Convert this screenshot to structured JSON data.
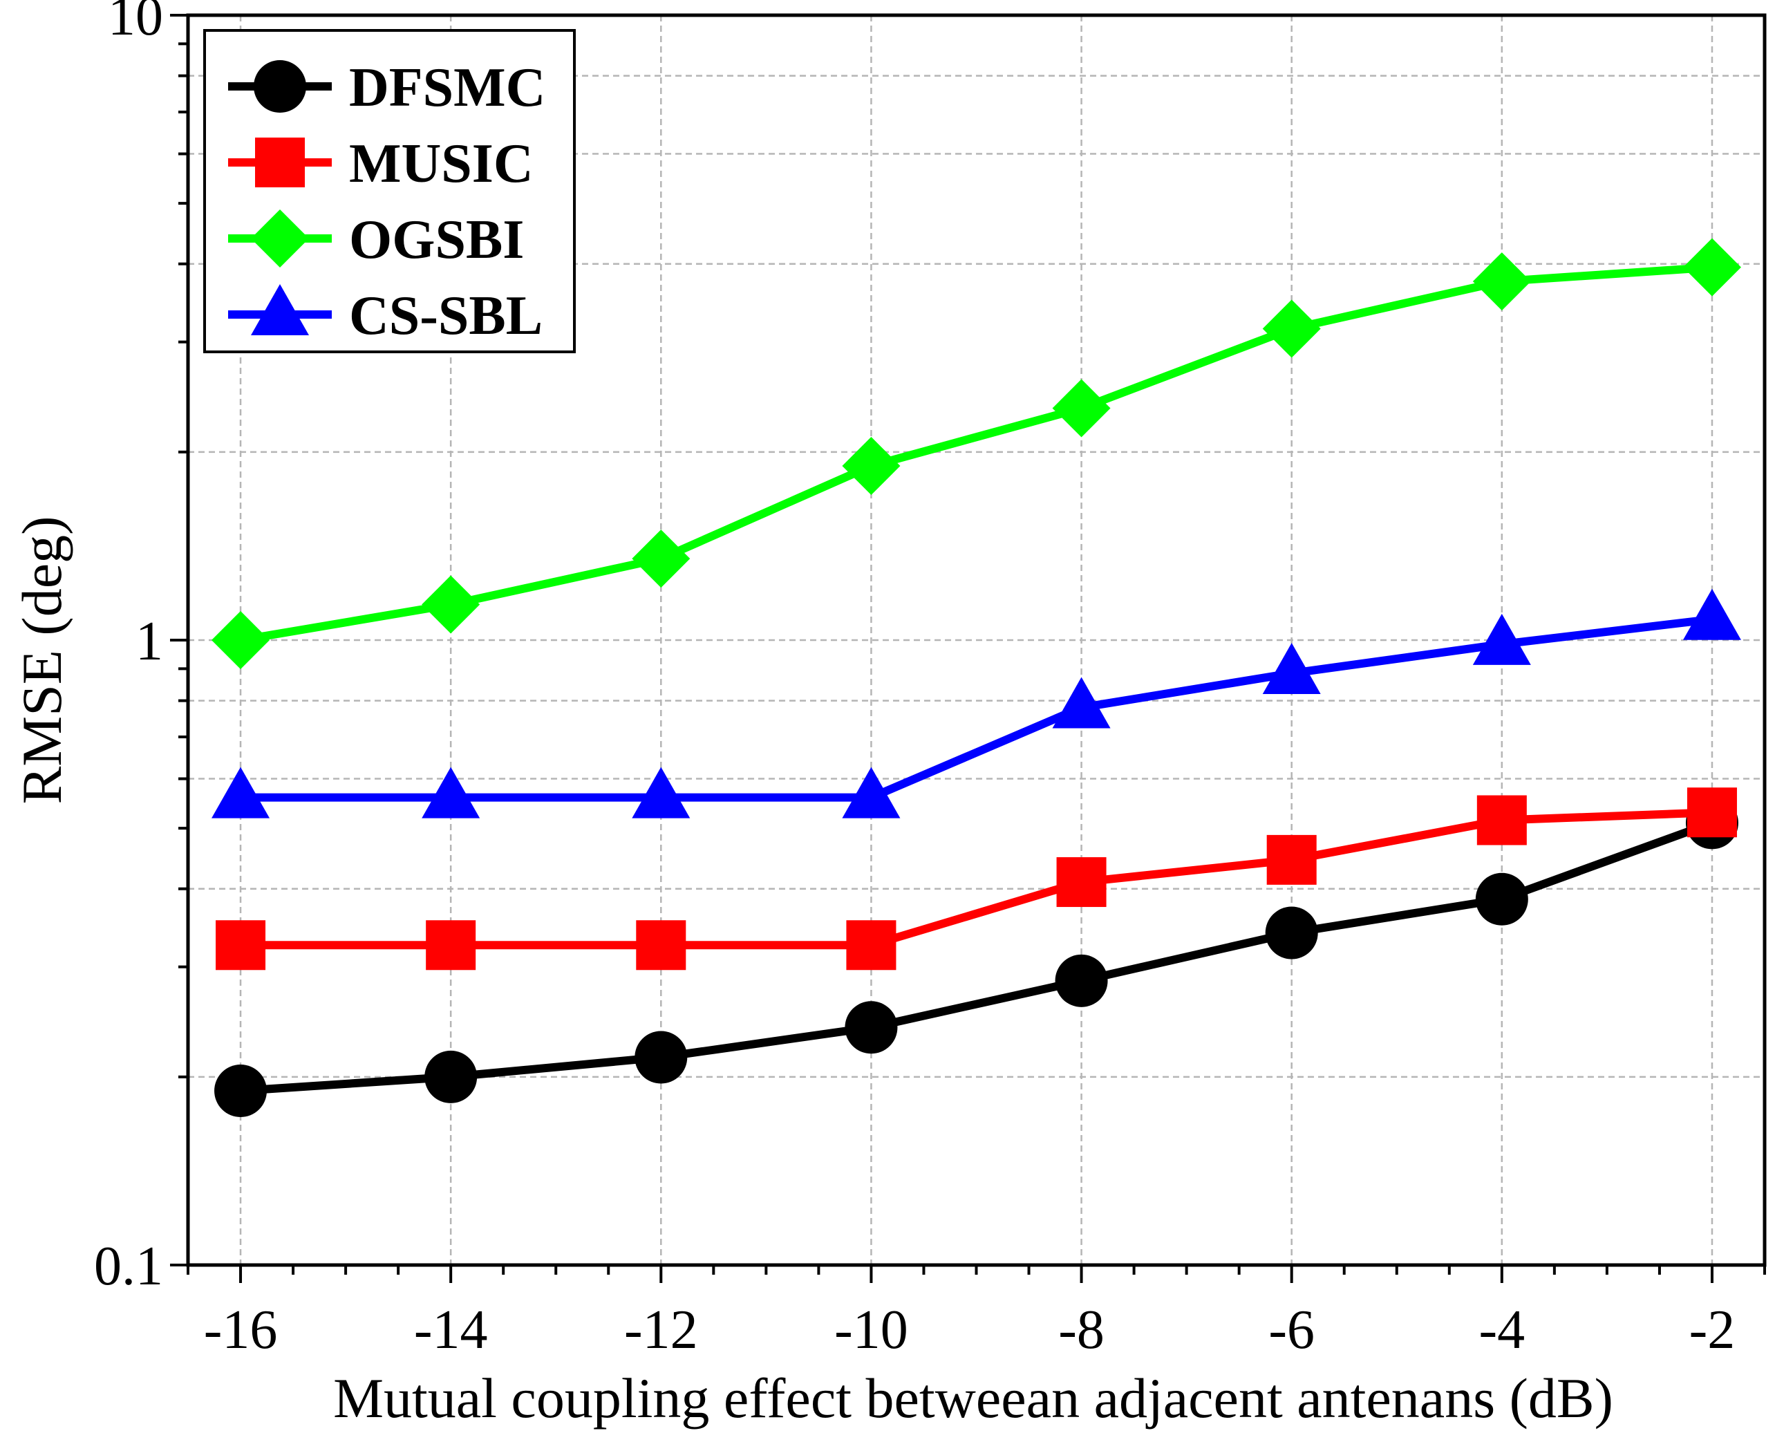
{
  "chart_data": {
    "type": "line",
    "title": "",
    "xlabel": "Mutual coupling effect betweean adjacent antenans (dB)",
    "ylabel": "RMSE (deg)",
    "x": [
      -16,
      -14,
      -12,
      -10,
      -8,
      -6,
      -4,
      -2
    ],
    "xlim": [
      -16.5,
      -1.5
    ],
    "ylim": [
      0.1,
      10
    ],
    "yscale": "log",
    "xticks": [
      -16,
      -14,
      -12,
      -10,
      -8,
      -6,
      -4,
      -2
    ],
    "xtick_labels": [
      "-16",
      "-14",
      "-12",
      "-10",
      "-8",
      "-6",
      "-4",
      "-2"
    ],
    "yticks": [
      0.1,
      1,
      10
    ],
    "ytick_labels": [
      "0.1",
      "1",
      "10"
    ],
    "grid": true,
    "legend_position": "top-left",
    "series": [
      {
        "name": "DFSMC",
        "color": "#000000",
        "marker": "circle",
        "values": [
          0.19,
          0.2,
          0.215,
          0.24,
          0.285,
          0.34,
          0.385,
          0.51
        ]
      },
      {
        "name": "MUSIC",
        "color": "#ff0000",
        "marker": "square",
        "values": [
          0.325,
          0.325,
          0.325,
          0.325,
          0.41,
          0.445,
          0.515,
          0.53
        ]
      },
      {
        "name": "OGSBI",
        "color": "#00ff00",
        "marker": "diamond",
        "values": [
          1.0,
          1.14,
          1.35,
          1.9,
          2.35,
          3.15,
          3.75,
          3.95
        ]
      },
      {
        "name": "CS-SBL",
        "color": "#0000ff",
        "marker": "triangle",
        "values": [
          0.56,
          0.56,
          0.56,
          0.56,
          0.78,
          0.885,
          0.985,
          1.08
        ]
      }
    ]
  }
}
